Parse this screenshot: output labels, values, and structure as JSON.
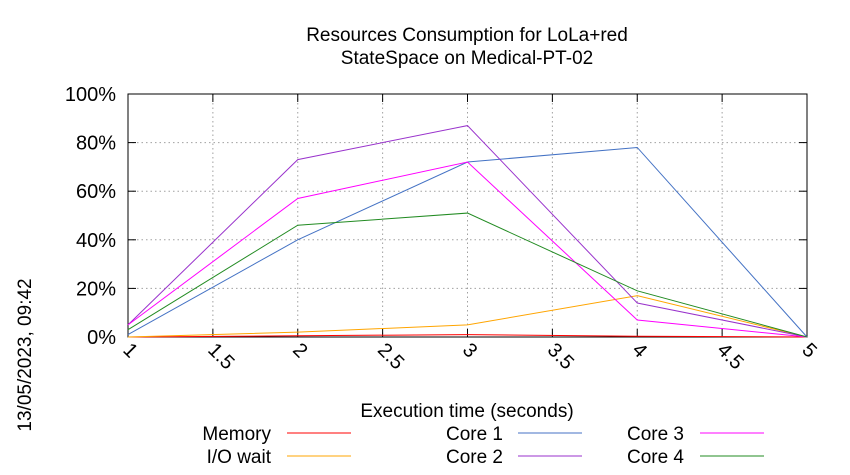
{
  "chart_data": {
    "type": "line",
    "title_lines": [
      "Resources Consumption for LoLa+red",
      "StateSpace on Medical-PT-02"
    ],
    "xlabel": "Execution time (seconds)",
    "ylabel": "",
    "side_label": "13/05/2023, 09:42",
    "xlim": [
      1,
      5
    ],
    "ylim": [
      0,
      100
    ],
    "x_ticks": [
      {
        "value": 1,
        "label": "1"
      },
      {
        "value": 1.5,
        "label": "1.5"
      },
      {
        "value": 2,
        "label": "2"
      },
      {
        "value": 2.5,
        "label": "2.5"
      },
      {
        "value": 3,
        "label": "3"
      },
      {
        "value": 3.5,
        "label": "3.5"
      },
      {
        "value": 4,
        "label": "4"
      },
      {
        "value": 4.5,
        "label": "4.5"
      },
      {
        "value": 5,
        "label": "5"
      }
    ],
    "y_ticks": [
      {
        "value": 0,
        "label": "0%"
      },
      {
        "value": 20,
        "label": "20%"
      },
      {
        "value": 40,
        "label": "40%"
      },
      {
        "value": 60,
        "label": "60%"
      },
      {
        "value": 80,
        "label": "80%"
      },
      {
        "value": 100,
        "label": "100%"
      }
    ],
    "grid": true,
    "legend_position": "bottom",
    "x": [
      1,
      2,
      3,
      4,
      5
    ],
    "series": [
      {
        "name": "Memory",
        "color": "#ff0000",
        "values": [
          0,
          0.5,
          1,
          0.3,
          0
        ]
      },
      {
        "name": "I/O wait",
        "color": "#ffa500",
        "values": [
          0,
          2,
          5,
          17,
          0
        ]
      },
      {
        "name": "Core 1",
        "color": "#4472c4",
        "values": [
          1,
          40,
          72,
          78,
          0
        ]
      },
      {
        "name": "Core 2",
        "color": "#9932cc",
        "values": [
          5,
          73,
          87,
          14,
          0
        ]
      },
      {
        "name": "Core 3",
        "color": "#ff00ff",
        "values": [
          5,
          57,
          72,
          7,
          0
        ]
      },
      {
        "name": "Core 4",
        "color": "#228b22",
        "values": [
          3,
          46,
          51,
          19,
          0
        ]
      }
    ]
  }
}
